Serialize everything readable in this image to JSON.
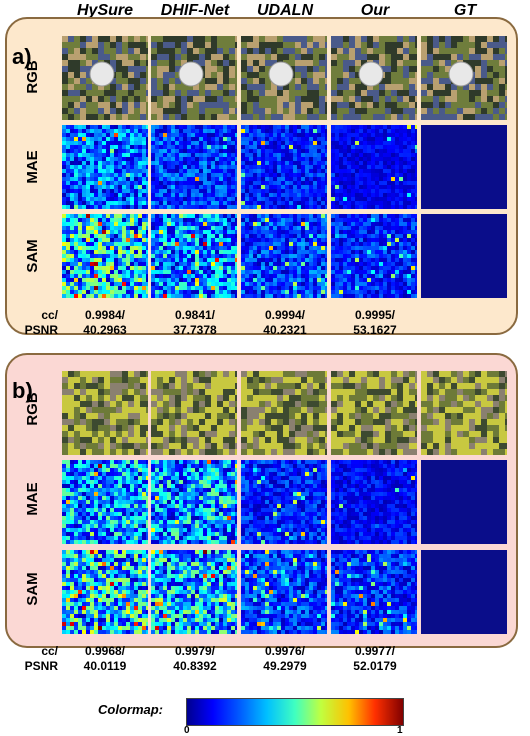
{
  "columns": [
    "HySure",
    "DHIF-Net",
    "UDALN",
    "Our",
    "GT"
  ],
  "rows": [
    "RGB",
    "MAE",
    "SAM"
  ],
  "panels": [
    {
      "label": "a)",
      "metric_label_1": "cc/",
      "metric_label_2": "PSNR",
      "metrics": [
        {
          "cc": "0.9984/",
          "psnr": "40.2963"
        },
        {
          "cc": "0.9841/",
          "psnr": "37.7378"
        },
        {
          "cc": "0.9994/",
          "psnr": "40.2321"
        },
        {
          "cc": "0.9995/",
          "psnr": "53.1627"
        }
      ]
    },
    {
      "label": "b)",
      "metric_label_1": "cc/",
      "metric_label_2": "PSNR",
      "metrics": [
        {
          "cc": "0.9968/",
          "psnr": "40.0119"
        },
        {
          "cc": "0.9979/",
          "psnr": "40.8392"
        },
        {
          "cc": "0.9976/",
          "psnr": "49.2979"
        },
        {
          "cc": "0.9977/",
          "psnr": "52.0179"
        }
      ]
    }
  ],
  "colormap": {
    "label": "Colormap:",
    "min": "0",
    "max": "1"
  },
  "colors": {
    "panel_a_bg": "#fde8cc",
    "panel_b_bg": "#fbd8d4",
    "gt_error": "#0a0d8a"
  }
}
